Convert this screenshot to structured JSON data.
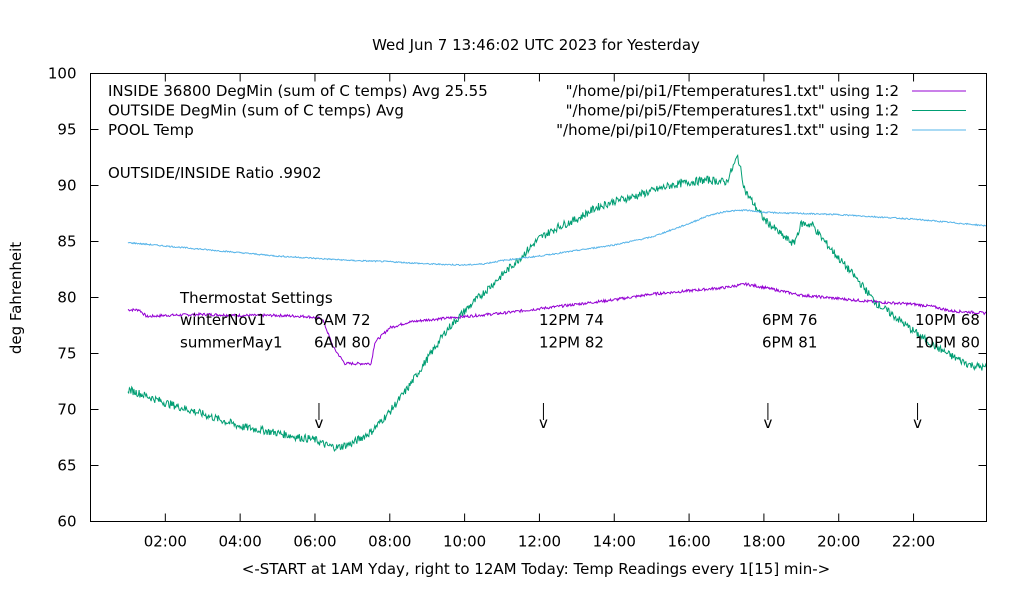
{
  "chart_data": {
    "type": "line",
    "title": "Wed Jun  7 13:46:02 UTC 2023 for Yesterday",
    "xlabel": "<-START at 1AM Yday, right to 12AM Today:  Temp Readings every 1[15] min->",
    "ylabel": "deg Fahrenheit",
    "xlim": [
      0.0,
      23.95
    ],
    "ylim": [
      60,
      100
    ],
    "xticks": [
      {
        "v": 2,
        "label": "02:00"
      },
      {
        "v": 4,
        "label": "04:00"
      },
      {
        "v": 6,
        "label": "06:00"
      },
      {
        "v": 8,
        "label": "08:00"
      },
      {
        "v": 10,
        "label": "10:00"
      },
      {
        "v": 12,
        "label": "12:00"
      },
      {
        "v": 14,
        "label": "14:00"
      },
      {
        "v": 16,
        "label": "16:00"
      },
      {
        "v": 18,
        "label": "18:00"
      },
      {
        "v": 20,
        "label": "20:00"
      },
      {
        "v": 22,
        "label": "22:00"
      }
    ],
    "yticks": [
      {
        "v": 60,
        "label": "60"
      },
      {
        "v": 65,
        "label": "65"
      },
      {
        "v": 70,
        "label": "70"
      },
      {
        "v": 75,
        "label": "75"
      },
      {
        "v": 80,
        "label": "80"
      },
      {
        "v": 85,
        "label": "85"
      },
      {
        "v": 90,
        "label": "90"
      },
      {
        "v": 95,
        "label": "95"
      },
      {
        "v": 100,
        "label": "100"
      }
    ],
    "grid": false,
    "legend_position": "top",
    "series": [
      {
        "name": "INSIDE 36800 DegMin (sum of C temps) Avg 25.55",
        "file": "\"/home/pi/pi1/Ftemperatures1.txt\" using 1:2",
        "color": "#9400d3",
        "noise": 0.12,
        "points": [
          [
            1.0,
            78.9
          ],
          [
            1.3,
            78.9
          ],
          [
            1.5,
            78.3
          ],
          [
            2.0,
            78.4
          ],
          [
            3.0,
            78.5
          ],
          [
            4.0,
            78.4
          ],
          [
            5.0,
            78.4
          ],
          [
            5.8,
            78.3
          ],
          [
            6.0,
            78.2
          ],
          [
            6.2,
            78.1
          ],
          [
            6.5,
            75.5
          ],
          [
            6.8,
            74.1
          ],
          [
            7.5,
            74.1
          ],
          [
            7.6,
            76.0
          ],
          [
            8.0,
            77.3
          ],
          [
            8.5,
            77.8
          ],
          [
            9.0,
            78.0
          ],
          [
            10.0,
            78.3
          ],
          [
            11.0,
            78.6
          ],
          [
            11.5,
            78.8
          ],
          [
            12.0,
            79.0
          ],
          [
            13.0,
            79.4
          ],
          [
            14.0,
            79.8
          ],
          [
            15.0,
            80.3
          ],
          [
            16.0,
            80.6
          ],
          [
            17.0,
            80.9
          ],
          [
            17.5,
            81.2
          ],
          [
            18.0,
            80.9
          ],
          [
            19.0,
            80.2
          ],
          [
            20.0,
            79.9
          ],
          [
            21.0,
            79.6
          ],
          [
            22.0,
            79.4
          ],
          [
            22.5,
            79.2
          ],
          [
            23.0,
            78.8
          ],
          [
            23.5,
            78.7
          ],
          [
            23.95,
            78.6
          ]
        ]
      },
      {
        "name": "OUTSIDE  DegMin (sum of C temps) Avg",
        "file": "\"/home/pi/pi5/Ftemperatures1.txt\" using 1:2",
        "color": "#009e73",
        "noise": 0.35,
        "points": [
          [
            1.0,
            71.8
          ],
          [
            1.5,
            71.2
          ],
          [
            2.0,
            70.6
          ],
          [
            3.0,
            69.6
          ],
          [
            4.0,
            68.5
          ],
          [
            5.0,
            67.9
          ],
          [
            5.6,
            67.5
          ],
          [
            6.0,
            67.3
          ],
          [
            6.3,
            66.8
          ],
          [
            6.6,
            66.6
          ],
          [
            7.0,
            67.0
          ],
          [
            7.5,
            68.0
          ],
          [
            8.0,
            69.8
          ],
          [
            8.5,
            72.0
          ],
          [
            9.0,
            74.5
          ],
          [
            9.5,
            77.0
          ],
          [
            10.0,
            78.8
          ],
          [
            10.5,
            80.4
          ],
          [
            11.0,
            82.0
          ],
          [
            11.5,
            83.6
          ],
          [
            12.0,
            85.3
          ],
          [
            12.5,
            86.3
          ],
          [
            13.0,
            87.0
          ],
          [
            13.5,
            88.0
          ],
          [
            14.0,
            88.6
          ],
          [
            14.5,
            89.0
          ],
          [
            15.0,
            89.5
          ],
          [
            15.5,
            90.0
          ],
          [
            16.0,
            90.3
          ],
          [
            16.5,
            90.5
          ],
          [
            17.0,
            90.3
          ],
          [
            17.3,
            92.6
          ],
          [
            17.5,
            89.5
          ],
          [
            18.0,
            87.0
          ],
          [
            18.5,
            85.5
          ],
          [
            18.8,
            84.8
          ],
          [
            19.0,
            86.6
          ],
          [
            19.3,
            86.5
          ],
          [
            19.5,
            85.5
          ],
          [
            20.0,
            83.5
          ],
          [
            20.5,
            81.6
          ],
          [
            21.0,
            79.5
          ],
          [
            21.5,
            78.3
          ],
          [
            22.0,
            77.0
          ],
          [
            22.5,
            75.8
          ],
          [
            23.0,
            74.8
          ],
          [
            23.5,
            74.0
          ],
          [
            23.95,
            73.7
          ]
        ]
      },
      {
        "name": "POOL Temp",
        "file": "\"/home/pi/pi10/Ftemperatures1.txt\" using 1:2",
        "color": "#56b4e9",
        "noise": 0.06,
        "points": [
          [
            1.0,
            84.9
          ],
          [
            2.0,
            84.6
          ],
          [
            3.0,
            84.3
          ],
          [
            4.0,
            84.0
          ],
          [
            5.0,
            83.7
          ],
          [
            6.0,
            83.5
          ],
          [
            7.0,
            83.3
          ],
          [
            8.0,
            83.2
          ],
          [
            9.0,
            83.0
          ],
          [
            10.0,
            82.9
          ],
          [
            10.5,
            83.0
          ],
          [
            11.0,
            83.3
          ],
          [
            12.0,
            83.7
          ],
          [
            13.0,
            84.2
          ],
          [
            14.0,
            84.7
          ],
          [
            15.0,
            85.4
          ],
          [
            16.0,
            86.6
          ],
          [
            16.5,
            87.3
          ],
          [
            17.0,
            87.7
          ],
          [
            17.5,
            87.8
          ],
          [
            18.0,
            87.6
          ],
          [
            19.0,
            87.5
          ],
          [
            20.0,
            87.4
          ],
          [
            21.0,
            87.2
          ],
          [
            22.0,
            87.0
          ],
          [
            23.0,
            86.7
          ],
          [
            23.95,
            86.4
          ]
        ]
      }
    ],
    "annotations": [
      {
        "text": "OUTSIDE/INSIDE Ratio .9902"
      },
      {
        "text": "Thermostat Settings"
      }
    ],
    "thermostat": {
      "rows": [
        {
          "label": "winterNov1",
          "values": [
            "6AM 72",
            "12PM 74",
            "6PM 76",
            "10PM 68"
          ]
        },
        {
          "label": "summerMay1",
          "values": [
            "6AM 80",
            "12PM 82",
            "6PM 81",
            "10PM 80"
          ]
        }
      ],
      "marker_hours": [
        6.0,
        12.0,
        18.0,
        22.0
      ],
      "marker_glyph": "v"
    }
  }
}
